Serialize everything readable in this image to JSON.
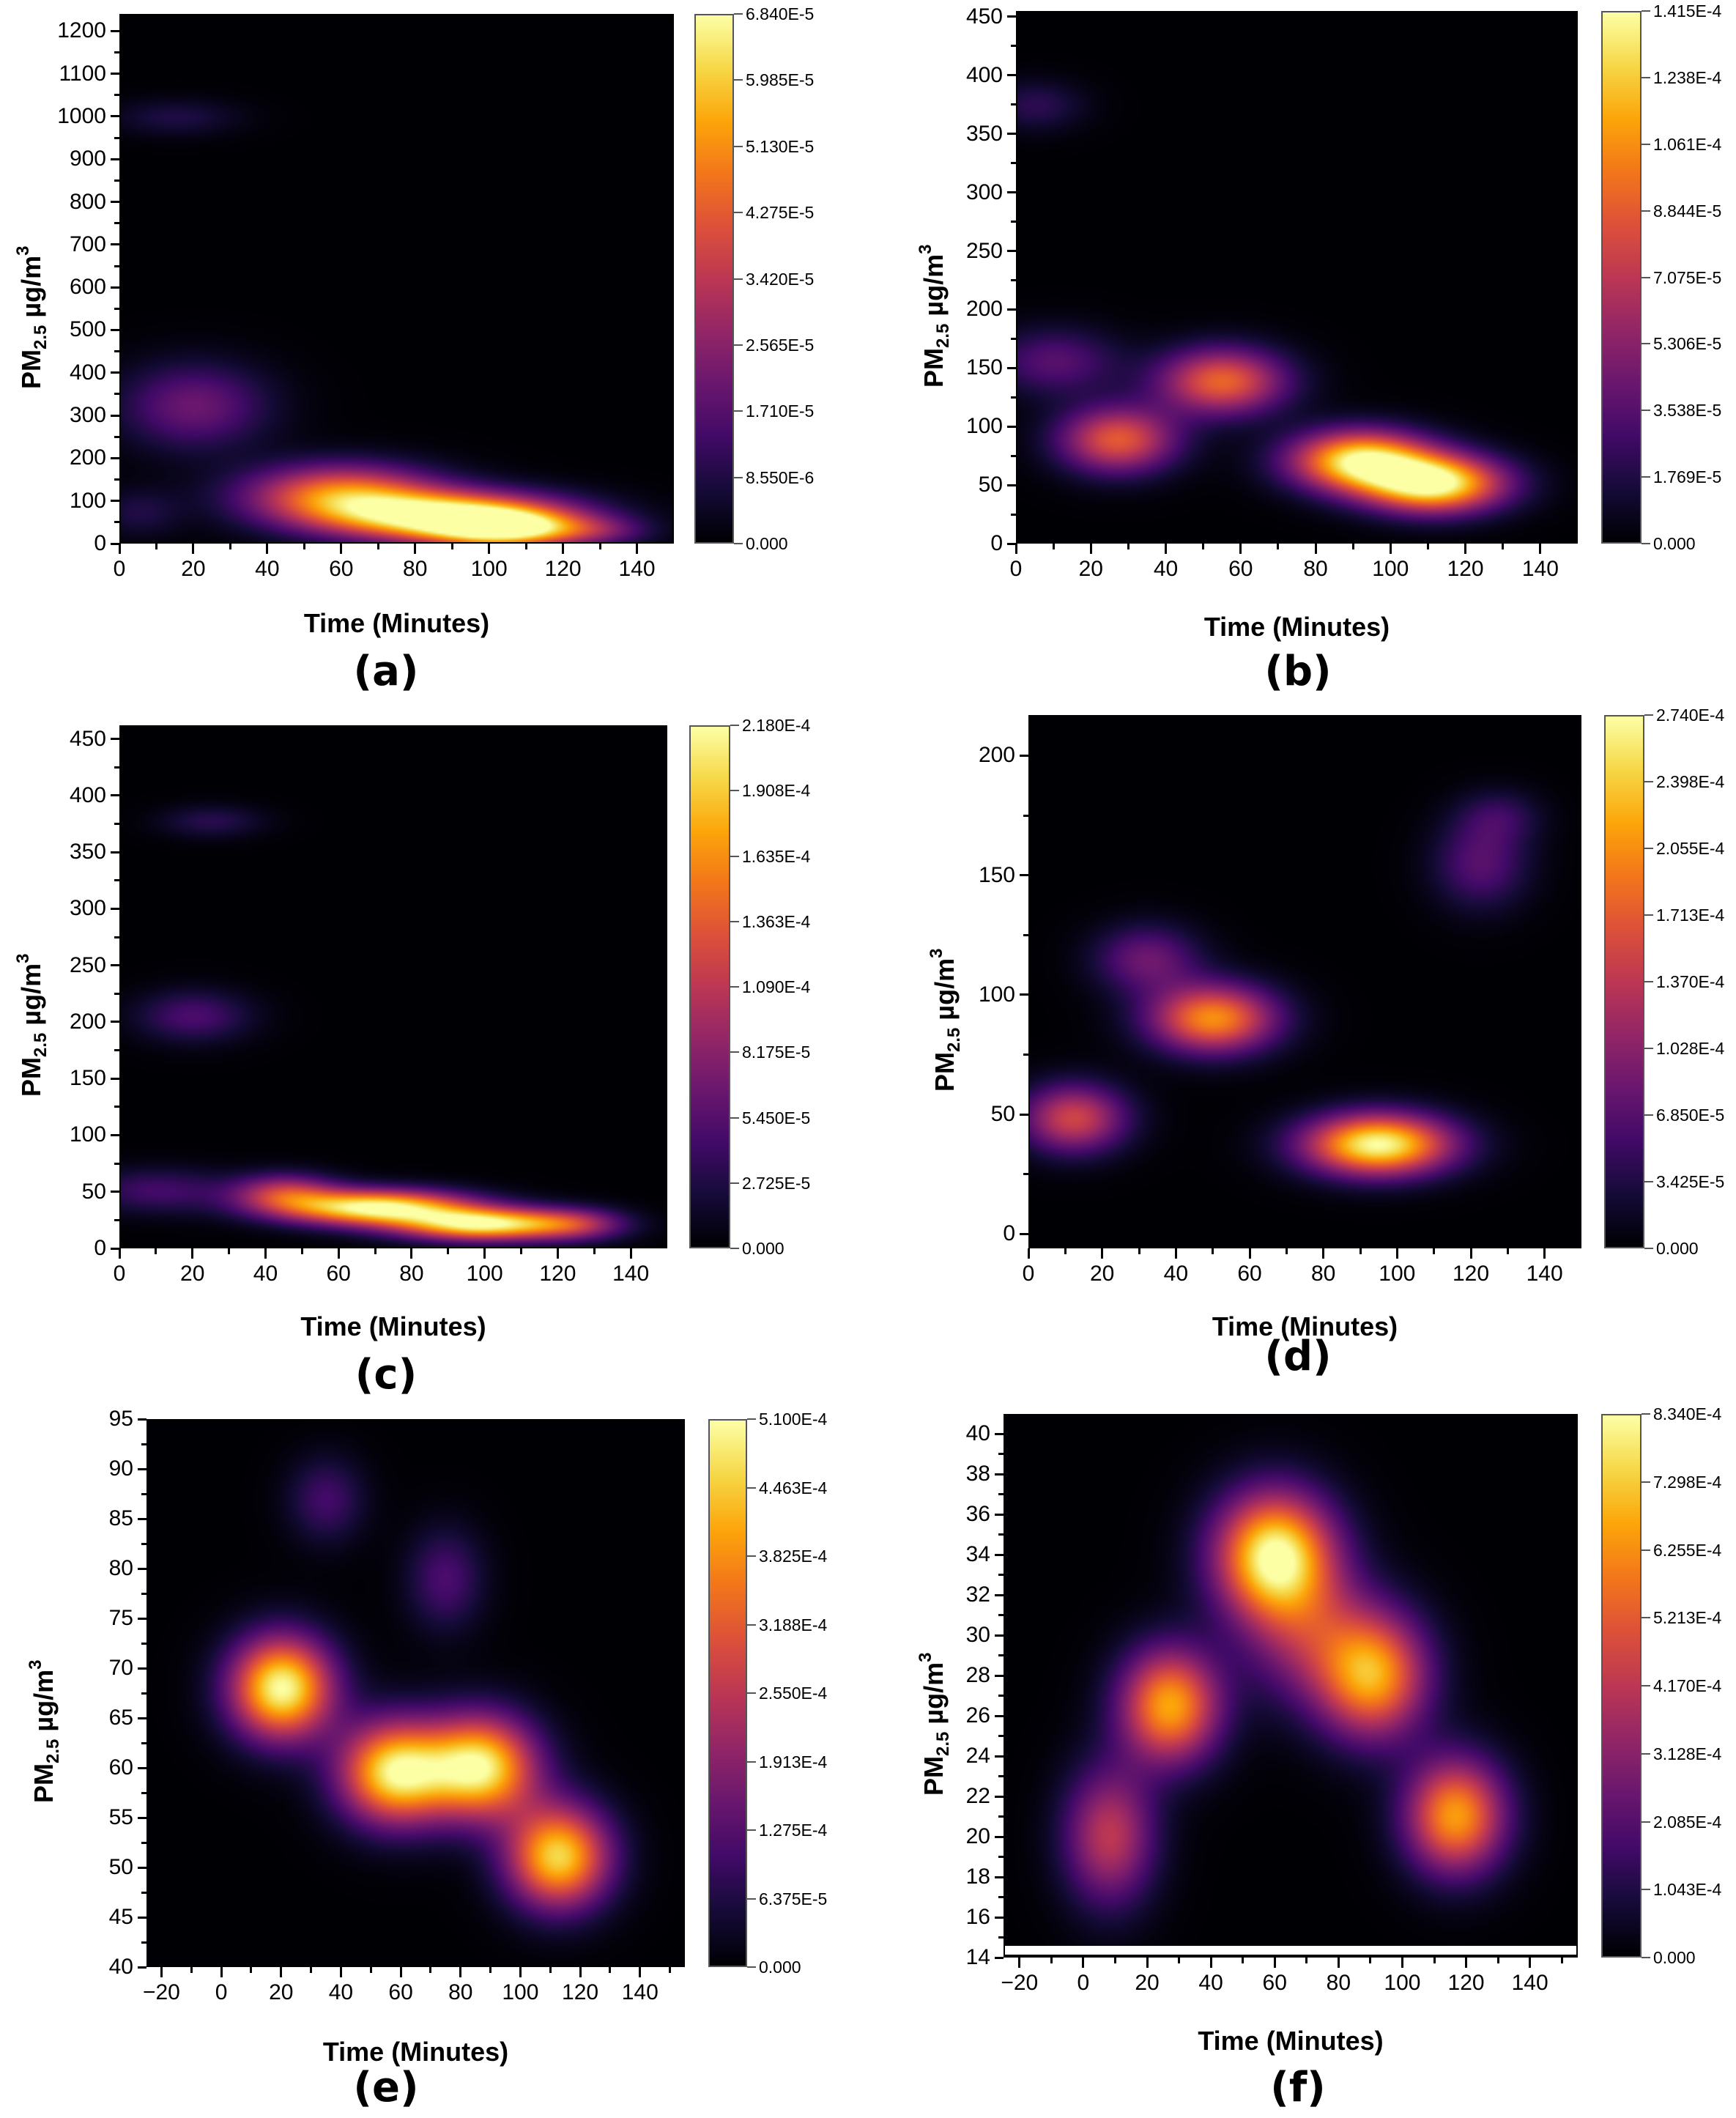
{
  "figure": {
    "panels": [
      {
        "id": "a",
        "label": "(a)"
      },
      {
        "id": "b",
        "label": "(b)"
      },
      {
        "id": "c",
        "label": "(c)"
      },
      {
        "id": "d",
        "label": "(d)"
      },
      {
        "id": "e",
        "label": "(e)"
      },
      {
        "id": "f",
        "label": "(f)"
      }
    ],
    "xlabel": "Time (Minutes)",
    "ylabel_main": "PM",
    "ylabel_sub": "2.5",
    "ylabel_unit": " µg/m",
    "ylabel_sup": "3"
  },
  "chart_data": [
    {
      "panel": "(a)",
      "type": "heatmap",
      "title": "(a)",
      "xlabel": "Time (Minutes)",
      "ylabel": "PM2.5 µg/m3",
      "xlim": [
        0,
        150
      ],
      "ylim": [
        0,
        1240
      ],
      "xticks": [
        0,
        20,
        40,
        60,
        80,
        100,
        120,
        140
      ],
      "yticks": [
        0,
        100,
        200,
        300,
        400,
        500,
        600,
        700,
        800,
        900,
        1000,
        1100,
        1200
      ],
      "colorbar": {
        "min": 0,
        "max": 6.84e-05,
        "ticks": [
          "0.000",
          "8.550E-6",
          "1.710E-5",
          "2.565E-5",
          "3.420E-5",
          "4.275E-5",
          "5.130E-5",
          "5.985E-5",
          "6.840E-5"
        ]
      },
      "colormap": "inferno",
      "density_peaks": [
        {
          "x": 90,
          "y": 60,
          "sx": 22,
          "sy": 40,
          "v": 1.0
        },
        {
          "x": 60,
          "y": 110,
          "sx": 18,
          "sy": 50,
          "v": 0.72
        },
        {
          "x": 105,
          "y": 30,
          "sx": 14,
          "sy": 30,
          "v": 0.75
        },
        {
          "x": 20,
          "y": 320,
          "sx": 14,
          "sy": 70,
          "v": 0.3
        },
        {
          "x": 130,
          "y": 25,
          "sx": 10,
          "sy": 25,
          "v": 0.2
        },
        {
          "x": 15,
          "y": 1000,
          "sx": 12,
          "sy": 30,
          "v": 0.12
        },
        {
          "x": 5,
          "y": 70,
          "sx": 8,
          "sy": 40,
          "v": 0.12
        }
      ]
    },
    {
      "panel": "(b)",
      "type": "heatmap",
      "title": "(b)",
      "xlabel": "Time (Minutes)",
      "ylabel": "PM2.5 µg/m3",
      "xlim": [
        0,
        150
      ],
      "ylim": [
        0,
        455
      ],
      "xticks": [
        0,
        20,
        40,
        60,
        80,
        100,
        120,
        140
      ],
      "yticks": [
        0,
        50,
        100,
        150,
        200,
        250,
        300,
        350,
        400,
        450
      ],
      "colorbar": {
        "min": 0,
        "max": 0.0001415,
        "ticks": [
          "0.000",
          "1.769E-5",
          "3.538E-5",
          "5.306E-5",
          "7.075E-5",
          "8.844E-5",
          "1.061E-4",
          "1.238E-4",
          "1.415E-4"
        ]
      },
      "colormap": "inferno",
      "density_peaks": [
        {
          "x": 92,
          "y": 70,
          "sx": 13,
          "sy": 18,
          "v": 0.95
        },
        {
          "x": 112,
          "y": 50,
          "sx": 13,
          "sy": 17,
          "v": 1.0
        },
        {
          "x": 27,
          "y": 88,
          "sx": 11,
          "sy": 20,
          "v": 0.62
        },
        {
          "x": 55,
          "y": 138,
          "sx": 12,
          "sy": 20,
          "v": 0.65
        },
        {
          "x": 10,
          "y": 155,
          "sx": 12,
          "sy": 20,
          "v": 0.25
        },
        {
          "x": 5,
          "y": 375,
          "sx": 9,
          "sy": 15,
          "v": 0.15
        }
      ]
    },
    {
      "panel": "(c)",
      "type": "heatmap",
      "title": "(c)",
      "xlabel": "Time (Minutes)",
      "ylabel": "PM2.5 µg/m3",
      "xlim": [
        0,
        150
      ],
      "ylim": [
        0,
        462
      ],
      "xticks": [
        0,
        20,
        40,
        60,
        80,
        100,
        120,
        140
      ],
      "yticks": [
        0,
        50,
        100,
        150,
        200,
        250,
        300,
        350,
        400,
        450
      ],
      "colorbar": {
        "min": 0,
        "max": 0.000218,
        "ticks": [
          "0.000",
          "2.725E-5",
          "5.450E-5",
          "8.175E-5",
          "1.090E-4",
          "1.363E-4",
          "1.635E-4",
          "1.908E-4",
          "2.180E-4"
        ]
      },
      "colormap": "inferno",
      "density_peaks": [
        {
          "x": 70,
          "y": 35,
          "sx": 18,
          "sy": 11,
          "v": 1.0
        },
        {
          "x": 100,
          "y": 20,
          "sx": 16,
          "sy": 10,
          "v": 0.95
        },
        {
          "x": 45,
          "y": 48,
          "sx": 10,
          "sy": 12,
          "v": 0.45
        },
        {
          "x": 125,
          "y": 20,
          "sx": 10,
          "sy": 10,
          "v": 0.35
        },
        {
          "x": 10,
          "y": 50,
          "sx": 14,
          "sy": 14,
          "v": 0.2
        },
        {
          "x": 20,
          "y": 205,
          "sx": 11,
          "sy": 16,
          "v": 0.22
        },
        {
          "x": 25,
          "y": 378,
          "sx": 10,
          "sy": 10,
          "v": 0.14
        }
      ]
    },
    {
      "panel": "(d)",
      "type": "heatmap",
      "title": "(d)",
      "xlabel": "Time (Minutes)",
      "ylabel": "PM2.5 µg/m3",
      "xlim": [
        0,
        150
      ],
      "ylim": [
        -6,
        217
      ],
      "xticks": [
        0,
        20,
        40,
        60,
        80,
        100,
        120,
        140
      ],
      "yticks": [
        0,
        50,
        100,
        150,
        200
      ],
      "colorbar": {
        "min": 0,
        "max": 0.000274,
        "ticks": [
          "0.000",
          "3.425E-5",
          "6.850E-5",
          "1.028E-4",
          "1.370E-4",
          "1.713E-4",
          "2.055E-4",
          "2.398E-4",
          "2.740E-4"
        ]
      },
      "colormap": "inferno",
      "density_peaks": [
        {
          "x": 95,
          "y": 37,
          "sx": 14,
          "sy": 9,
          "v": 1.0
        },
        {
          "x": 50,
          "y": 90,
          "sx": 12,
          "sy": 10,
          "v": 0.75
        },
        {
          "x": 12,
          "y": 48,
          "sx": 10,
          "sy": 10,
          "v": 0.55
        },
        {
          "x": 32,
          "y": 115,
          "sx": 10,
          "sy": 10,
          "v": 0.3
        },
        {
          "x": 123,
          "y": 155,
          "sx": 9,
          "sy": 13,
          "v": 0.25
        },
        {
          "x": 128,
          "y": 175,
          "sx": 8,
          "sy": 8,
          "v": 0.15
        }
      ]
    },
    {
      "panel": "(e)",
      "type": "heatmap",
      "title": "(e)",
      "xlabel": "Time (Minutes)",
      "ylabel": "PM2.5 µg/m3",
      "xlim": [
        -25,
        155
      ],
      "ylim": [
        40,
        95
      ],
      "xticks": [
        -20,
        0,
        20,
        40,
        60,
        80,
        100,
        120,
        140
      ],
      "yticks": [
        40,
        45,
        50,
        55,
        60,
        65,
        70,
        75,
        80,
        85,
        90,
        95
      ],
      "colorbar": {
        "min": 0,
        "max": 0.00051,
        "ticks": [
          "0.000",
          "6.375E-5",
          "1.275E-4",
          "1.913E-4",
          "2.550E-4",
          "3.188E-4",
          "3.825E-4",
          "4.463E-4",
          "5.100E-4"
        ]
      },
      "colormap": "inferno",
      "density_peaks": [
        {
          "x": 20,
          "y": 68,
          "sx": 12,
          "sy": 3.6,
          "v": 1.0
        },
        {
          "x": 58,
          "y": 59.5,
          "sx": 13,
          "sy": 3.6,
          "v": 0.95
        },
        {
          "x": 87,
          "y": 60,
          "sx": 13,
          "sy": 3.6,
          "v": 0.95
        },
        {
          "x": 113,
          "y": 51,
          "sx": 12,
          "sy": 3.6,
          "v": 0.9
        },
        {
          "x": 35,
          "y": 87,
          "sx": 9,
          "sy": 3,
          "v": 0.2
        },
        {
          "x": 75,
          "y": 79,
          "sx": 9,
          "sy": 3.6,
          "v": 0.22
        }
      ]
    },
    {
      "panel": "(f)",
      "type": "heatmap",
      "title": "(f)",
      "xlabel": "Time (Minutes)",
      "ylabel": "PM2.5 µg/m3",
      "xlim": [
        -25,
        155
      ],
      "ylim": [
        14,
        41
      ],
      "xticks": [
        -20,
        0,
        20,
        40,
        60,
        80,
        100,
        120,
        140
      ],
      "yticks": [
        14,
        16,
        18,
        20,
        22,
        24,
        26,
        28,
        30,
        32,
        34,
        36,
        38,
        40
      ],
      "colorbar": {
        "min": 0,
        "max": 0.000834,
        "ticks": [
          "0.000",
          "1.043E-4",
          "2.085E-4",
          "3.128E-4",
          "4.170E-4",
          "5.213E-4",
          "6.255E-4",
          "7.298E-4",
          "8.340E-4"
        ]
      },
      "colormap": "inferno",
      "density_peaks": [
        {
          "x": 60,
          "y": 34,
          "sx": 13,
          "sy": 2.2,
          "v": 1.0
        },
        {
          "x": 27,
          "y": 26.5,
          "sx": 11,
          "sy": 2.0,
          "v": 0.8
        },
        {
          "x": 91,
          "y": 28,
          "sx": 12,
          "sy": 2.2,
          "v": 0.78
        },
        {
          "x": 117,
          "y": 21,
          "sx": 11,
          "sy": 2.0,
          "v": 0.78
        },
        {
          "x": 8,
          "y": 20,
          "sx": 10,
          "sy": 2.4,
          "v": 0.5
        },
        {
          "x": 70,
          "y": 30,
          "sx": 14,
          "sy": 2.4,
          "v": 0.35
        }
      ]
    }
  ]
}
